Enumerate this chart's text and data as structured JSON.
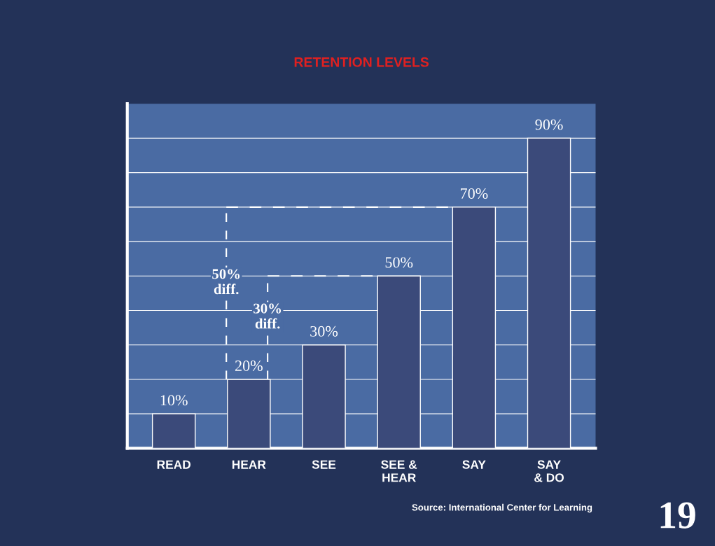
{
  "chart_data": {
    "type": "bar",
    "title": "RETENTION LEVELS",
    "categories": [
      "READ",
      "HEAR",
      "SEE",
      "SEE &\nHEAR",
      "SAY",
      "SAY\n& DO"
    ],
    "values": [
      10,
      20,
      30,
      50,
      70,
      90
    ],
    "color": "#3b4a7a",
    "value_labels": [
      "10%",
      "20%",
      "30%",
      "50%",
      "70%",
      "90%"
    ],
    "grid": "y",
    "ylim": [
      0,
      100
    ],
    "yticks": [
      {
        "value": 10,
        "label": null
      },
      {
        "value": 20,
        "label": null
      },
      {
        "value": 30,
        "label": null
      },
      {
        "value": 40,
        "label": null
      },
      {
        "value": 50,
        "label": null
      },
      {
        "value": 60,
        "label": null
      },
      {
        "value": 70,
        "label": null
      },
      {
        "value": 80,
        "label": null
      },
      {
        "value": 90,
        "label": null
      }
    ],
    "annotations": [
      "50%\ndiff.",
      "30%\ndiff.",
      "Source: International Center for Learning",
      "19"
    ]
  }
}
